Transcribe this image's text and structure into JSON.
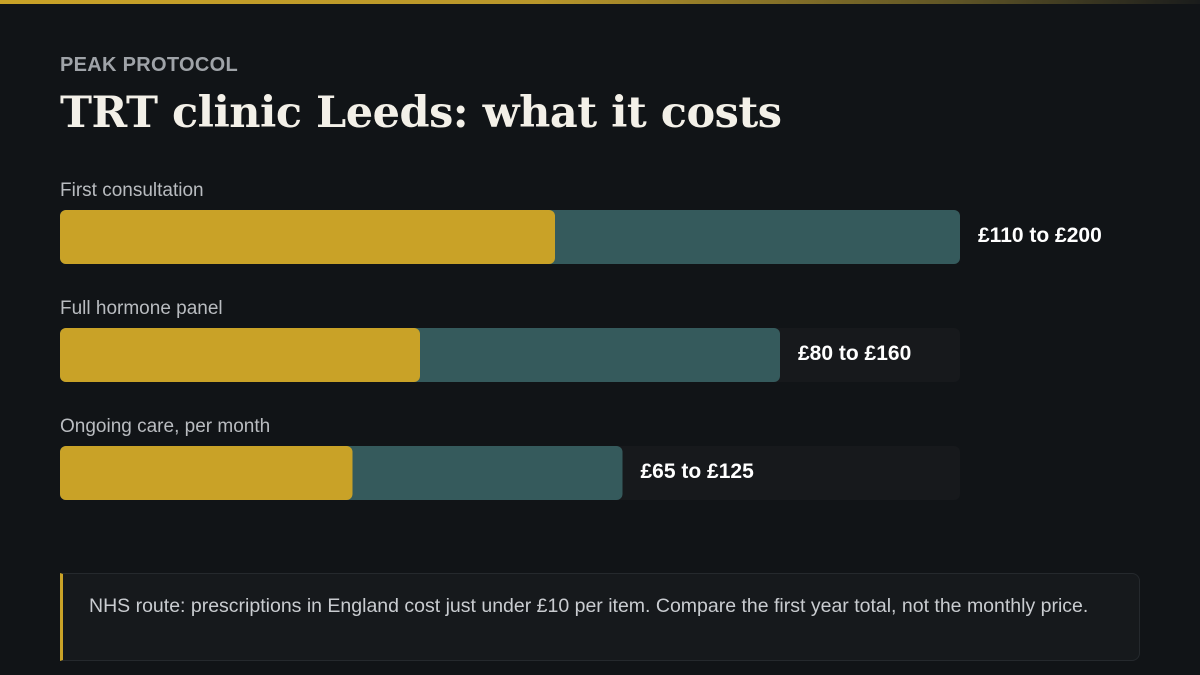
{
  "brand": "PEAK PROTOCOL",
  "title": "TRT clinic Leeds: what it costs",
  "colors": {
    "low_segment": "#c9a227",
    "high_segment": "#355a5c",
    "track": "#17191c",
    "accent": "#c9a227",
    "background": "#111417"
  },
  "chart_data": {
    "type": "bar",
    "orientation": "horizontal",
    "stacked_range": true,
    "currency": "£",
    "categories": [
      "First consultation",
      "Full hormone panel",
      "Ongoing care, per month"
    ],
    "series": [
      {
        "values": [
          110,
          80,
          65
        ]
      },
      {
        "values": [
          200,
          160,
          125
        ]
      }
    ],
    "value_labels": [
      "£110 to £200",
      "£80 to £160",
      "£65 to £125"
    ],
    "xlim": [
      0,
      200
    ],
    "grid": false,
    "legend": "none"
  },
  "note": {
    "text": "NHS route: prescriptions in England cost just under £10 per item. Compare the first year total, not the monthly price."
  }
}
